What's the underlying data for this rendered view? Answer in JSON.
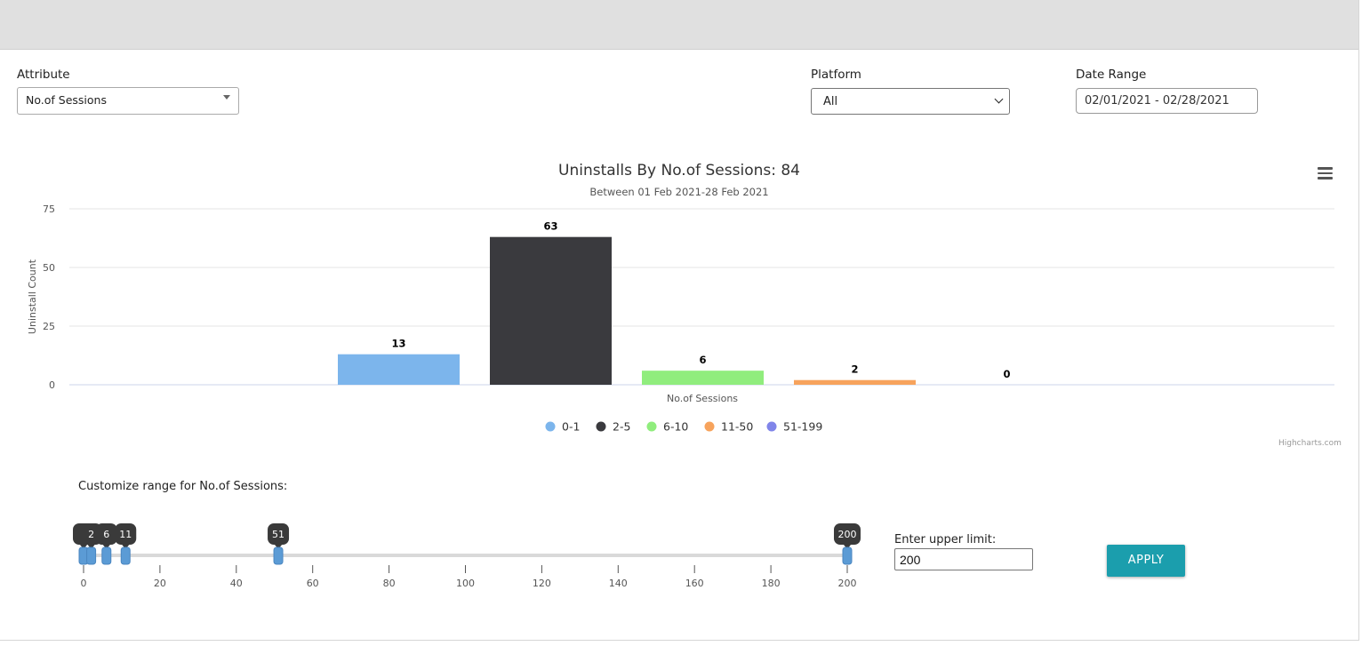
{
  "filters": {
    "attribute_label": "Attribute",
    "attribute_value": "No.of Sessions",
    "platform_label": "Platform",
    "platform_value": "All",
    "date_range_label": "Date Range",
    "date_range_value": "02/01/2021 - 02/28/2021"
  },
  "chart_data": {
    "type": "bar",
    "title": "Uninstalls By No.of Sessions: 84",
    "subtitle": "Between 01 Feb 2021-28 Feb 2021",
    "xlabel": "No.of Sessions",
    "ylabel": "Uninstall Count",
    "ylim": [
      0,
      75
    ],
    "yticks": [
      0,
      25,
      50,
      75
    ],
    "grid": true,
    "legend_position": "bottom-center",
    "categories": [
      "0-1",
      "2-5",
      "6-10",
      "11-50",
      "51-199"
    ],
    "values": [
      13,
      63,
      6,
      2,
      0
    ],
    "colors": [
      "#7cb5ec",
      "#3a3a3e",
      "#90ed7d",
      "#f7a35c",
      "#8085e9"
    ],
    "credits": "Highcharts.com"
  },
  "range_customizer": {
    "title": "Customize range for No.of Sessions:",
    "min": 0,
    "max": 200,
    "axis_ticks": [
      0,
      20,
      40,
      60,
      80,
      100,
      120,
      140,
      160,
      180,
      200
    ],
    "handles": [
      0,
      2,
      6,
      11,
      51,
      200
    ],
    "handle_labels": [
      "0",
      "2",
      "6",
      "11",
      "51",
      "200"
    ],
    "upper_limit_label": "Enter upper limit:",
    "upper_limit_value": "200",
    "apply_label": "APPLY"
  }
}
